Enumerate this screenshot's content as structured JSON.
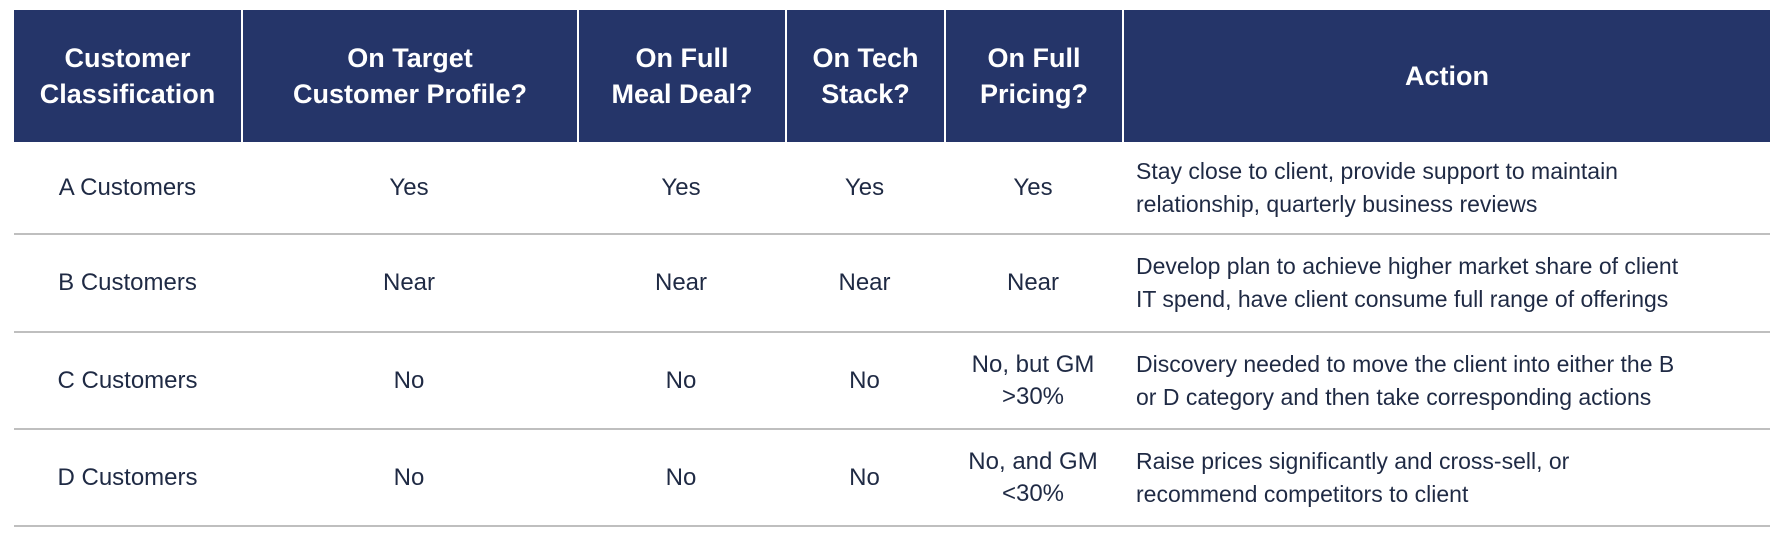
{
  "colors": {
    "header_bg": "#253569",
    "header_text": "#ffffff",
    "body_text": "#1f2a44",
    "row_divider": "#bfbfbf",
    "header_divider": "#ffffff"
  },
  "table": {
    "headers": [
      {
        "id": "classification",
        "label": "Customer\nClassification"
      },
      {
        "id": "target_profile",
        "label": "On Target\nCustomer Profile?"
      },
      {
        "id": "meal_deal",
        "label": "On Full\nMeal Deal?"
      },
      {
        "id": "tech_stack",
        "label": "On Tech\nStack?"
      },
      {
        "id": "pricing",
        "label": "On Full\nPricing?"
      },
      {
        "id": "action",
        "label": "Action"
      }
    ],
    "rows": [
      {
        "classification": "A Customers",
        "target_profile": "Yes",
        "meal_deal": "Yes",
        "tech_stack": "Yes",
        "pricing": "Yes",
        "action": "Stay close to client, provide support to maintain\nrelationship, quarterly business reviews"
      },
      {
        "classification": "B Customers",
        "target_profile": "Near",
        "meal_deal": "Near",
        "tech_stack": "Near",
        "pricing": "Near",
        "action": "Develop plan to achieve higher market share of client\nIT spend, have client consume full range of offerings"
      },
      {
        "classification": "C Customers",
        "target_profile": "No",
        "meal_deal": "No",
        "tech_stack": "No",
        "pricing": "No, but GM\n>30%",
        "action": "Discovery needed to move the client into either the B\nor D category and then take corresponding actions"
      },
      {
        "classification": "D Customers",
        "target_profile": "No",
        "meal_deal": "No",
        "tech_stack": "No",
        "pricing": "No, and GM\n<30%",
        "action": "Raise prices significantly and cross-sell, or\nrecommend competitors to client"
      }
    ]
  }
}
